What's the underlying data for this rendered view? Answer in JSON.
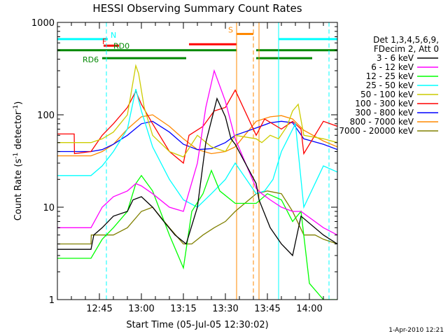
{
  "chart_data": {
    "type": "line",
    "title": "HESSI Observing Summary Count Rates",
    "xlabel": "Start Time (05-Jul-05 12:30:02)",
    "ylabel_main": "Count Rate (s",
    "ylabel_sup1": "-1",
    "ylabel_mid": " detector",
    "ylabel_sup2": "-1",
    "ylabel_end": ")",
    "y_scale": "log",
    "ylim": [
      1,
      1000
    ],
    "xlim_minutes": [
      0,
      100
    ],
    "y_ticks": [
      {
        "value": 1,
        "label": "1"
      },
      {
        "value": 10,
        "label": "10"
      },
      {
        "value": 100,
        "label": "100"
      },
      {
        "value": 1000,
        "label": "1000"
      }
    ],
    "x_ticks": [
      {
        "minute": 15,
        "label": "12:45"
      },
      {
        "minute": 30,
        "label": "13:00"
      },
      {
        "minute": 45,
        "label": "13:15"
      },
      {
        "minute": 60,
        "label": "13:30"
      },
      {
        "minute": 75,
        "label": "13:45"
      },
      {
        "minute": 90,
        "label": "14:00"
      }
    ],
    "legend_header": [
      "Det 1,3,4,5,6,9,",
      "FDecim 2, Att 0"
    ],
    "series": [
      {
        "name": "3 - 6 keV",
        "color": "#000000",
        "x": [
          0,
          12,
          13,
          16,
          20,
          25,
          27,
          30,
          34,
          38,
          42,
          46,
          50,
          53,
          57,
          60,
          62,
          63.5,
          71,
          72,
          76,
          80,
          84,
          87,
          95,
          100
        ],
        "y": [
          3.5,
          3.5,
          5,
          6,
          8,
          9,
          12,
          13,
          10,
          7,
          5,
          4,
          10,
          50,
          150,
          95,
          55,
          48,
          18,
          12,
          6,
          4,
          3,
          8,
          5,
          4
        ]
      },
      {
        "name": "6 - 12 keV",
        "color": "#ff00ff",
        "x": [
          0,
          12,
          16,
          20,
          25,
          28,
          30,
          34,
          40,
          45,
          50,
          53,
          56,
          60,
          63.5,
          71,
          73,
          76,
          80,
          84,
          87,
          95,
          100
        ],
        "y": [
          6,
          6,
          10,
          13,
          15,
          18,
          17,
          14,
          10,
          9,
          30,
          120,
          300,
          140,
          55,
          16,
          14,
          12,
          10,
          9,
          9,
          6,
          5
        ]
      },
      {
        "name": "12 - 25 keV",
        "color": "#00ff00",
        "x": [
          0,
          12,
          16,
          20,
          25,
          28,
          30,
          34,
          40,
          45,
          48,
          52,
          55,
          58,
          63.5,
          71,
          75,
          80,
          84,
          87,
          90,
          95,
          100
        ],
        "y": [
          2.8,
          2.8,
          4.5,
          6,
          9,
          18,
          22,
          15,
          5,
          2.2,
          9,
          14,
          25,
          15,
          11,
          11,
          14,
          12,
          7,
          9,
          1.5,
          1,
          1
        ]
      },
      {
        "name": "25 - 50 keV",
        "color": "#00ffff",
        "x": [
          0,
          12,
          16,
          20,
          25,
          28,
          30,
          34,
          40,
          45,
          50,
          55,
          60,
          63.5,
          71,
          74,
          77,
          80,
          85,
          88,
          95,
          100
        ],
        "y": [
          22,
          22,
          28,
          40,
          70,
          190,
          110,
          45,
          20,
          12,
          10,
          14,
          20,
          30,
          14,
          15,
          20,
          40,
          80,
          10,
          28,
          24
        ]
      },
      {
        "name": "50 - 100 keV",
        "color": "#cccc00",
        "x": [
          0,
          12,
          16,
          20,
          25,
          28,
          29,
          31,
          34,
          40,
          45,
          50,
          55,
          60,
          63.5,
          71,
          73,
          76,
          79,
          82,
          84,
          86,
          88,
          95,
          100
        ],
        "y": [
          50,
          50,
          55,
          65,
          100,
          340,
          280,
          120,
          60,
          40,
          35,
          60,
          45,
          40,
          60,
          55,
          50,
          60,
          55,
          75,
          110,
          130,
          60,
          55,
          50
        ]
      },
      {
        "name": "100 - 300 keV",
        "color": "#ff0000",
        "x": [
          0,
          6,
          6.1,
          12,
          16,
          20,
          25,
          28,
          30,
          34,
          40,
          45,
          47,
          52,
          56,
          60,
          63.5,
          71,
          74,
          80,
          84,
          87,
          88,
          95,
          100
        ],
        "y": [
          62,
          62,
          38,
          40,
          60,
          80,
          120,
          180,
          130,
          80,
          40,
          30,
          60,
          75,
          110,
          120,
          185,
          60,
          90,
          70,
          85,
          70,
          38,
          85,
          75
        ]
      },
      {
        "name": "300 - 800 keV",
        "color": "#0000ff",
        "x": [
          0,
          12,
          16,
          20,
          25,
          30,
          34,
          40,
          45,
          50,
          55,
          60,
          63.5,
          71,
          76,
          80,
          84,
          88,
          95,
          100
        ],
        "y": [
          40,
          40,
          42,
          48,
          60,
          80,
          85,
          65,
          48,
          42,
          43,
          50,
          60,
          72,
          82,
          85,
          82,
          55,
          48,
          42
        ]
      },
      {
        "name": "800 - 7000 keV",
        "color": "#ff8800",
        "x": [
          0,
          12,
          16,
          20,
          25,
          30,
          34,
          40,
          45,
          50,
          55,
          60,
          63.5,
          71,
          76,
          80,
          84,
          88,
          95,
          100
        ],
        "y": [
          36,
          36,
          40,
          48,
          70,
          95,
          100,
          75,
          55,
          42,
          38,
          40,
          45,
          85,
          95,
          98,
          90,
          68,
          52,
          45
        ]
      },
      {
        "name": "7000 - 20000 keV",
        "color": "#808000",
        "x": [
          0,
          12,
          12.1,
          16,
          20,
          25,
          30,
          34,
          40,
          45,
          48,
          52,
          56,
          60,
          63.5,
          71,
          75,
          80,
          84,
          88,
          92,
          95,
          100
        ],
        "y": [
          4,
          4,
          5,
          5,
          5,
          6,
          9,
          10,
          6,
          4,
          4,
          5,
          6,
          7,
          9,
          14,
          15,
          14,
          9,
          5,
          5,
          4.5,
          4
        ]
      }
    ],
    "state_bars": [
      {
        "label": "N",
        "color": "#00ffff",
        "y": 660,
        "segments": [
          [
            0,
            18
          ],
          [
            79,
            100
          ]
        ],
        "label_at": 19
      },
      {
        "label": "F",
        "color": "#ff0000",
        "y": 560,
        "segments": [
          [
            16.5,
            22
          ]
        ],
        "label_at": 16
      },
      {
        "label": "RD0",
        "color": "#008800",
        "y": 500,
        "segments": [
          [
            0,
            16.5
          ],
          [
            16.5,
            46
          ],
          [
            46,
            64
          ],
          [
            71,
            92.5
          ],
          [
            92.5,
            100
          ]
        ],
        "label_at": 20
      },
      {
        "label": "RD6",
        "color": "#008800",
        "y": 410,
        "segments": [
          [
            16,
            46
          ],
          [
            71,
            91
          ]
        ],
        "label_at": 9
      },
      {
        "label": "",
        "color": "#ff0000",
        "y": 580,
        "segments": [
          [
            47,
            64
          ]
        ],
        "label_at": 0
      },
      {
        "label": "S",
        "color": "#ff8800",
        "y": 750,
        "segments": [
          [
            64,
            70
          ]
        ],
        "label_at": 61
      }
    ],
    "vertical_lines": [
      {
        "minute": 0,
        "color": "#00ffff",
        "style": "solid"
      },
      {
        "minute": 17.5,
        "color": "#00ffff",
        "style": "dashed"
      },
      {
        "minute": 64,
        "color": "#ff8800",
        "style": "solid"
      },
      {
        "minute": 70,
        "color": "#ff8800",
        "style": "dashed"
      },
      {
        "minute": 72,
        "color": "#ff8800",
        "style": "solid"
      },
      {
        "minute": 79,
        "color": "#00ffff",
        "style": "solid"
      },
      {
        "minute": 97,
        "color": "#00ffff",
        "style": "dashed"
      }
    ],
    "grid": false,
    "legend_position": "right"
  },
  "footer": {
    "timestamp": "1-Apr-2010 12:21"
  }
}
